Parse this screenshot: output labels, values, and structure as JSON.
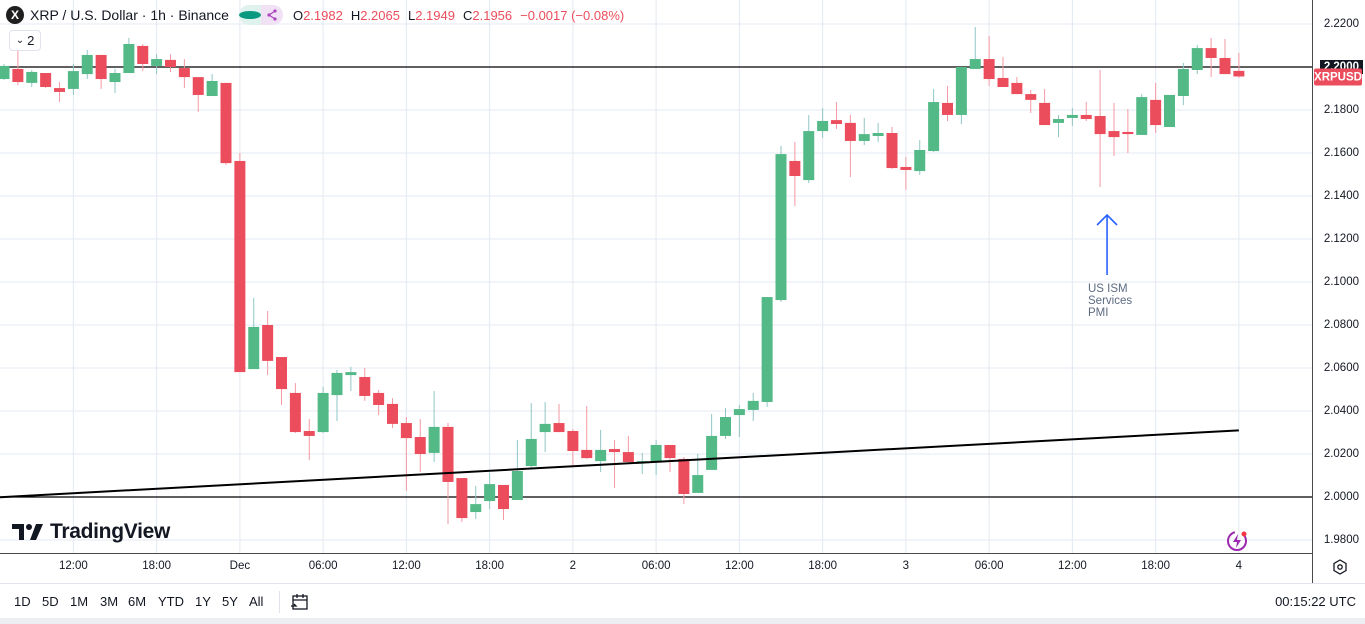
{
  "header": {
    "symbol_logo": "X",
    "title": "XRP / U.S. Dollar · 1h · Binance",
    "ohlc": [
      {
        "label": "O",
        "value": "2.1982"
      },
      {
        "label": "H",
        "value": "2.2065"
      },
      {
        "label": "L",
        "value": "2.1949"
      },
      {
        "label": "C",
        "value": "2.1956"
      }
    ],
    "change": "−0.0017 (−0.08%)",
    "legend_toggle_count": "2"
  },
  "watermark": "TradingView",
  "annotation": {
    "text_lines": [
      "US ISM",
      "Services",
      "PMI"
    ],
    "color": "#2962ff"
  },
  "symbol_tag": {
    "label": "XRPUSD",
    "color": "#eb4d5c"
  },
  "colors": {
    "up": "#53b987",
    "down": "#eb4d5c",
    "grid": "#e3eaf2"
  },
  "toolbar": {
    "ranges": [
      "1D",
      "5D",
      "1M",
      "3M",
      "6M",
      "YTD",
      "1Y",
      "5Y",
      "All"
    ],
    "clock": "00:15:22 UTC"
  },
  "chart_data": {
    "type": "candlestick",
    "interval": "1h",
    "ylim": [
      1.975,
      2.225
    ],
    "grid": true,
    "y_ticks": [
      "2.2200",
      "2.2000",
      "2.1800",
      "2.1600",
      "2.1400",
      "2.1200",
      "2.1000",
      "2.0800",
      "2.0600",
      "2.0400",
      "2.0200",
      "2.0000",
      "1.9800"
    ],
    "highlighted_y_tick": "2.2000",
    "x_ticks": [
      "12:00",
      "18:00",
      "Dec",
      "06:00",
      "12:00",
      "18:00",
      "2",
      "06:00",
      "12:00",
      "18:00",
      "3",
      "06:00",
      "12:00",
      "18:00",
      "4"
    ],
    "horizontal_lines": [
      2.2,
      2.0
    ],
    "trendline": {
      "from": {
        "index": 0,
        "price": 2.0
      },
      "to": {
        "index": 89,
        "price": 2.031
      }
    },
    "annotation_candle_index": 79.5,
    "candles": [
      [
        2.1944,
        2.2014,
        2.194,
        2.2005
      ],
      [
        2.1991,
        2.2079,
        2.1916,
        2.193
      ],
      [
        2.1926,
        2.1986,
        2.1907,
        2.1977
      ],
      [
        2.1972,
        2.1972,
        2.1902,
        2.1907
      ],
      [
        2.1902,
        2.193,
        2.1837,
        2.1884
      ],
      [
        2.1898,
        2.2014,
        2.187,
        2.1981
      ],
      [
        2.1967,
        2.2079,
        2.1944,
        2.2056
      ],
      [
        2.2056,
        2.2056,
        2.1898,
        2.1944
      ],
      [
        2.193,
        2.1991,
        2.1879,
        2.1972
      ],
      [
        2.1972,
        2.2135,
        2.1972,
        2.2107
      ],
      [
        2.2098,
        2.2107,
        2.1981,
        2.2014
      ],
      [
        2.2005,
        2.206,
        2.1967,
        2.2037
      ],
      [
        2.2033,
        2.206,
        2.1977,
        2.2
      ],
      [
        2.1995,
        2.2037,
        2.1902,
        2.1953
      ],
      [
        2.1953,
        2.1953,
        2.1791,
        2.187
      ],
      [
        2.1865,
        2.1967,
        2.1865,
        2.1935
      ],
      [
        2.1926,
        2.1926,
        2.1544,
        2.1553
      ],
      [
        2.1563,
        2.16,
        2.0581,
        2.0581
      ],
      [
        2.0595,
        2.0926,
        2.0595,
        2.0791
      ],
      [
        2.08,
        2.0865,
        2.0567,
        2.0633
      ],
      [
        2.0651,
        2.0651,
        2.0428,
        2.0502
      ],
      [
        2.0484,
        2.053,
        2.0298,
        2.0302
      ],
      [
        2.0307,
        2.0363,
        2.0172,
        2.0284
      ],
      [
        2.0302,
        2.0512,
        2.0298,
        2.0484
      ],
      [
        2.0474,
        2.0591,
        2.0353,
        2.0577
      ],
      [
        2.0567,
        2.0605,
        2.0493,
        2.0581
      ],
      [
        2.0558,
        2.06,
        2.0447,
        2.047
      ],
      [
        2.0484,
        2.0498,
        2.0381,
        2.0428
      ],
      [
        2.0433,
        2.046,
        2.0321,
        2.034
      ],
      [
        2.0344,
        2.0372,
        2.0028,
        2.0274
      ],
      [
        2.0279,
        2.0363,
        2.0116,
        2.02
      ],
      [
        2.0205,
        2.0493,
        2.0163,
        2.0326
      ],
      [
        2.0326,
        2.0344,
        1.9874,
        2.007
      ],
      [
        2.0088,
        2.0088,
        1.9884,
        1.9902
      ],
      [
        1.993,
        2.0051,
        1.9898,
        1.9967
      ],
      [
        1.9981,
        2.0112,
        1.9944,
        2.006
      ],
      [
        2.0056,
        2.0056,
        1.9893,
        1.9944
      ],
      [
        1.9986,
        2.0265,
        1.9986,
        2.0121
      ],
      [
        2.0144,
        2.0437,
        2.0135,
        2.027
      ],
      [
        2.0302,
        2.0442,
        2.0209,
        2.034
      ],
      [
        2.0344,
        2.0433,
        2.0302,
        2.0302
      ],
      [
        2.0307,
        2.0316,
        2.0144,
        2.0214
      ],
      [
        2.0219,
        2.0423,
        2.0177,
        2.0181
      ],
      [
        2.0167,
        2.0312,
        2.0116,
        2.0219
      ],
      [
        2.0223,
        2.0265,
        2.0042,
        2.0209
      ],
      [
        2.0209,
        2.0284,
        2.0163,
        2.0163
      ],
      [
        2.0158,
        2.0205,
        2.0107,
        2.0167
      ],
      [
        2.0163,
        2.0265,
        2.0102,
        2.0242
      ],
      [
        2.0242,
        2.0242,
        2.0116,
        2.0181
      ],
      [
        2.0177,
        2.0186,
        1.9967,
        2.0014
      ],
      [
        2.0019,
        2.02,
        2.0019,
        2.0102
      ],
      [
        2.0126,
        2.0386,
        2.0126,
        2.0284
      ],
      [
        2.0284,
        2.0414,
        2.027,
        2.0372
      ],
      [
        2.0381,
        2.0428,
        2.0279,
        2.0409
      ],
      [
        2.0405,
        2.0484,
        2.0353,
        2.0447
      ],
      [
        2.0442,
        2.093,
        2.0419,
        2.093
      ],
      [
        2.0916,
        2.1633,
        2.0907,
        2.1595
      ],
      [
        2.1563,
        2.1651,
        2.1353,
        2.1493
      ],
      [
        2.1474,
        2.1777,
        2.146,
        2.1702
      ],
      [
        2.1702,
        2.1809,
        2.167,
        2.1749
      ],
      [
        2.1753,
        2.1837,
        2.1712,
        2.1735
      ],
      [
        2.174,
        2.1777,
        2.1488,
        2.1656
      ],
      [
        2.1656,
        2.1763,
        2.1637,
        2.1688
      ],
      [
        2.1679,
        2.174,
        2.1651,
        2.1693
      ],
      [
        2.1693,
        2.1721,
        2.1526,
        2.153
      ],
      [
        2.1535,
        2.1581,
        2.1428,
        2.1521
      ],
      [
        2.1516,
        2.166,
        2.1498,
        2.1614
      ],
      [
        2.1609,
        2.1898,
        2.1605,
        2.1837
      ],
      [
        2.1833,
        2.1912,
        2.1749,
        2.1777
      ],
      [
        2.1777,
        2.2,
        2.1735,
        2.2
      ],
      [
        2.1991,
        2.2186,
        2.1991,
        2.2037
      ],
      [
        2.2037,
        2.2144,
        2.1912,
        2.1944
      ],
      [
        2.1949,
        2.2047,
        2.1907,
        2.1907
      ],
      [
        2.1926,
        2.1953,
        2.1874,
        2.1874
      ],
      [
        2.1874,
        2.1893,
        2.1786,
        2.1847
      ],
      [
        2.1833,
        2.1898,
        2.173,
        2.173
      ],
      [
        2.174,
        2.1777,
        2.1674,
        2.1758
      ],
      [
        2.1763,
        2.1809,
        2.1726,
        2.1777
      ],
      [
        2.1777,
        2.1837,
        2.1749,
        2.1758
      ],
      [
        2.1772,
        2.1986,
        2.1442,
        2.1688
      ],
      [
        2.1702,
        2.1833,
        2.1586,
        2.1674
      ],
      [
        2.1698,
        2.1805,
        2.16,
        2.1688
      ],
      [
        2.1684,
        2.1874,
        2.1684,
        2.186
      ],
      [
        2.1847,
        2.1926,
        2.1693,
        2.173
      ],
      [
        2.1721,
        2.187,
        2.1721,
        2.187
      ],
      [
        2.1865,
        2.2019,
        2.1823,
        2.1991
      ],
      [
        2.1986,
        2.2102,
        2.1967,
        2.2088
      ],
      [
        2.2088,
        2.2135,
        2.1953,
        2.2042
      ],
      [
        2.2042,
        2.213,
        2.1967,
        2.1967
      ],
      [
        2.1982,
        2.2065,
        2.1949,
        2.1956
      ]
    ]
  }
}
